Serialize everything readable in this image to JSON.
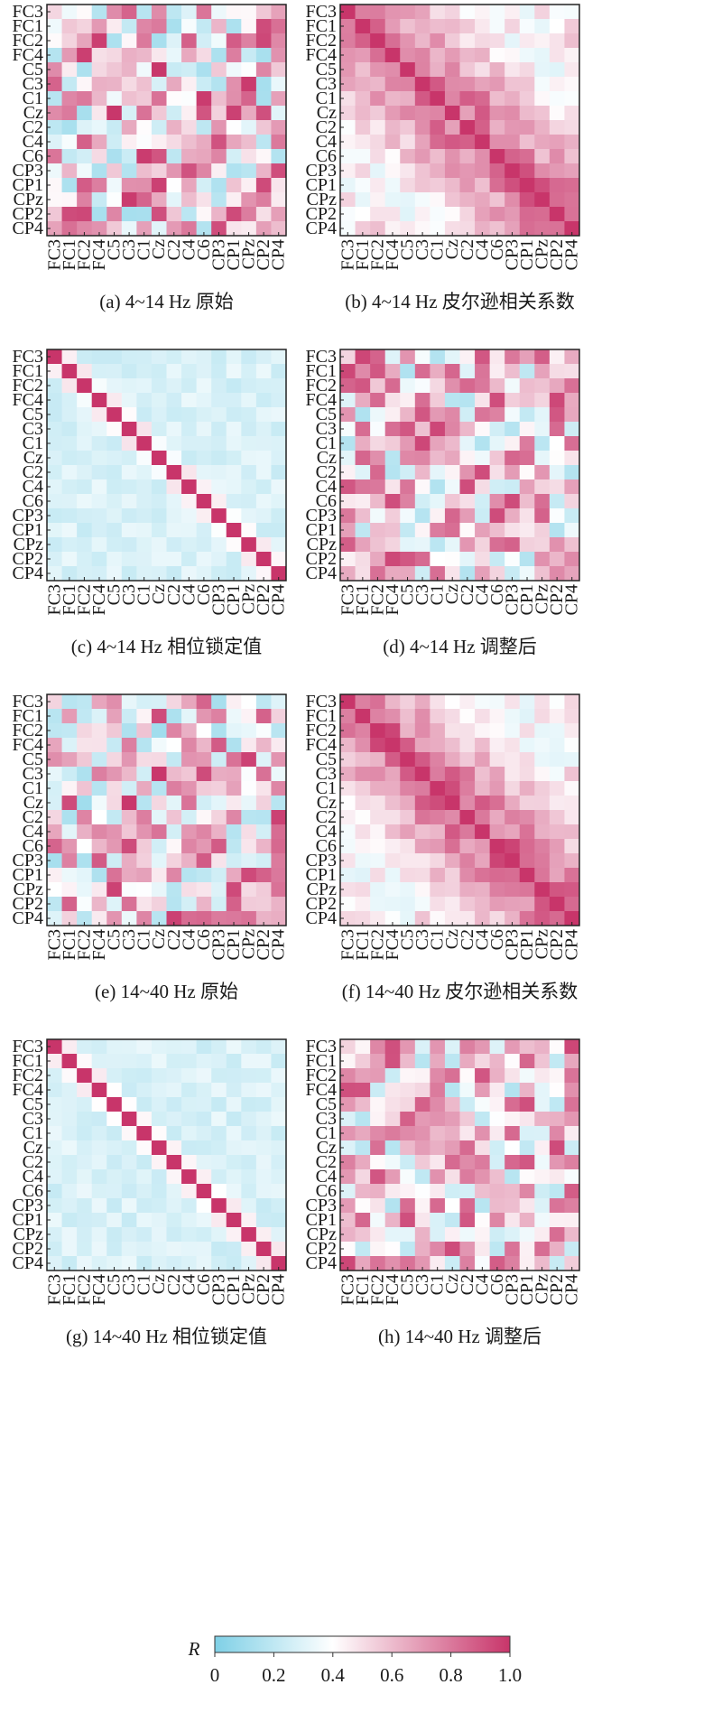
{
  "figure": {
    "channels": [
      "FC3",
      "FC1",
      "FC2",
      "FC4",
      "C5",
      "C3",
      "C1",
      "Cz",
      "C2",
      "C4",
      "C6",
      "CP3",
      "CP1",
      "CPz",
      "CP2",
      "CP4"
    ],
    "colormap": {
      "low": "#7fd0e6",
      "mid": "#ffffff",
      "high": "#c8356a"
    },
    "colorbar": {
      "label": "R",
      "ticks": [
        "0",
        "0.2",
        "0.4",
        "0.6",
        "0.8",
        "1.0"
      ],
      "range": [
        0,
        1.0
      ]
    }
  },
  "chart_data": [
    {
      "type": "heatmap",
      "id": "a",
      "caption": "(a) 4~14 Hz 原始",
      "pattern": "raw",
      "seed": 11
    },
    {
      "type": "heatmap",
      "id": "b",
      "caption": "(b) 4~14 Hz 皮尔逊相关系数",
      "pattern": "pearson",
      "seed": 23
    },
    {
      "type": "heatmap",
      "id": "c",
      "caption": "(c) 4~14 Hz 相位锁定值",
      "pattern": "plv",
      "seed": 37
    },
    {
      "type": "heatmap",
      "id": "d",
      "caption": "(d) 4~14 Hz 调整后",
      "pattern": "adjusted",
      "seed": 41
    },
    {
      "type": "heatmap",
      "id": "e",
      "caption": "(e) 14~40 Hz 原始",
      "pattern": "raw",
      "seed": 53
    },
    {
      "type": "heatmap",
      "id": "f",
      "caption": "(f) 14~40 Hz 皮尔逊相关系数",
      "pattern": "pearson",
      "seed": 67
    },
    {
      "type": "heatmap",
      "id": "g",
      "caption": "(g) 14~40 Hz 相位锁定值",
      "pattern": "plv",
      "seed": 71
    },
    {
      "type": "heatmap",
      "id": "h",
      "caption": "(h) 14~40 Hz 调整后",
      "pattern": "adjusted",
      "seed": 89
    }
  ]
}
